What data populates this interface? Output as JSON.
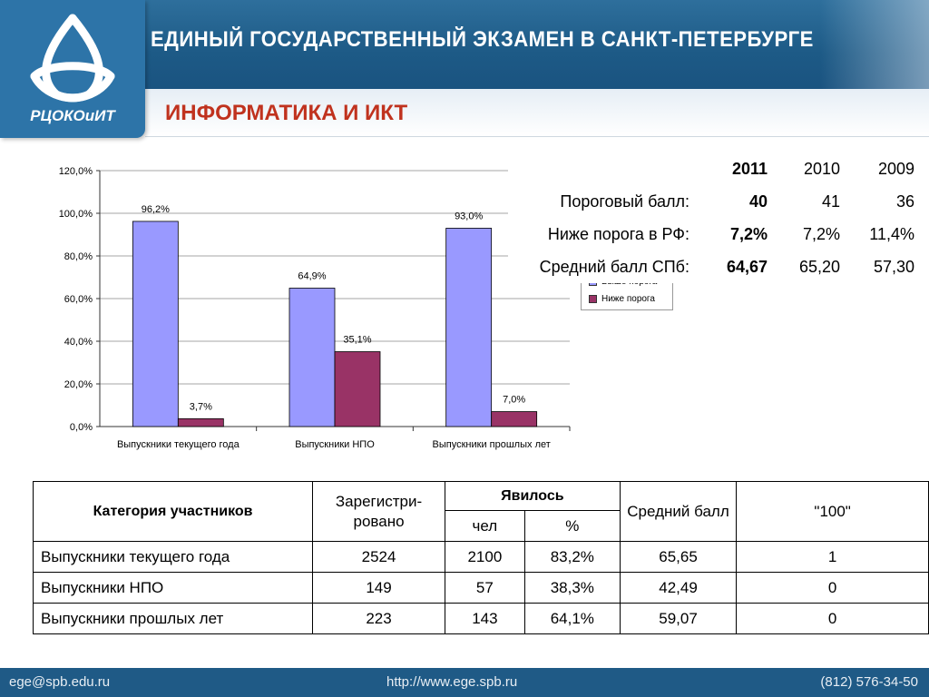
{
  "header": {
    "title": "ЕДИНЫЙ ГОСУДАРСТВЕННЫЙ ЭКЗАМЕН В САНКТ-ПЕТЕРБУРГЕ",
    "logo_text": "РЦОКОиИТ",
    "subject": "ИНФОРМАТИКА И ИКТ"
  },
  "colors": {
    "above": "#9999ff",
    "below": "#993366",
    "header_blue": "#1d5a86",
    "subject_red": "#c0321e"
  },
  "chart_data": {
    "type": "bar",
    "categories": [
      "Выпускники текущего года",
      "Выпускники НПО",
      "Выпускники прошлых лет"
    ],
    "series": [
      {
        "name": "Выше порога",
        "values": [
          96.2,
          64.9,
          93.0
        ],
        "labels": [
          "96,2%",
          "64,9%",
          "93,0%"
        ]
      },
      {
        "name": "Ниже порога",
        "values": [
          3.7,
          35.1,
          7.0
        ],
        "labels": [
          "3,7%",
          "35,1%",
          "7,0%"
        ]
      }
    ],
    "ylim": [
      0,
      120
    ],
    "yticks": [
      "0,0%",
      "20,0%",
      "40,0%",
      "60,0%",
      "80,0%",
      "100,0%",
      "120,0%"
    ],
    "grid": true,
    "legend": "right"
  },
  "summary": {
    "years": [
      "2011",
      "2010",
      "2009"
    ],
    "rows": [
      {
        "label": "Пороговый балл:",
        "values": [
          "40",
          "41",
          "36"
        ]
      },
      {
        "label": "Ниже порога в РФ:",
        "values": [
          "7,2%",
          "7,2%",
          "11,4%"
        ]
      },
      {
        "label": "Средний балл СПб:",
        "values": [
          "64,67",
          "65,20",
          "57,30"
        ]
      }
    ]
  },
  "table": {
    "headers": {
      "category": "Категория участников",
      "registered": "Зарегистри-рованo",
      "appeared": "Явилось",
      "people": "чел",
      "percent": "%",
      "average": "Средний балл",
      "hundred": "\"100\""
    },
    "rows": [
      {
        "category": "Выпускники текущего года",
        "registered": "2524",
        "people": "2100",
        "percent": "83,2%",
        "average": "65,65",
        "hundred": "1"
      },
      {
        "category": "Выпускники НПО",
        "registered": "149",
        "people": "57",
        "percent": "38,3%",
        "average": "42,49",
        "hundred": "0"
      },
      {
        "category": "Выпускники прошлых лет",
        "registered": "223",
        "people": "143",
        "percent": "64,1%",
        "average": "59,07",
        "hundred": "0"
      }
    ]
  },
  "footer": {
    "email": "ege@spb.edu.ru",
    "url": "http://www.ege.spb.ru",
    "phone": "(812) 576-34-50"
  }
}
